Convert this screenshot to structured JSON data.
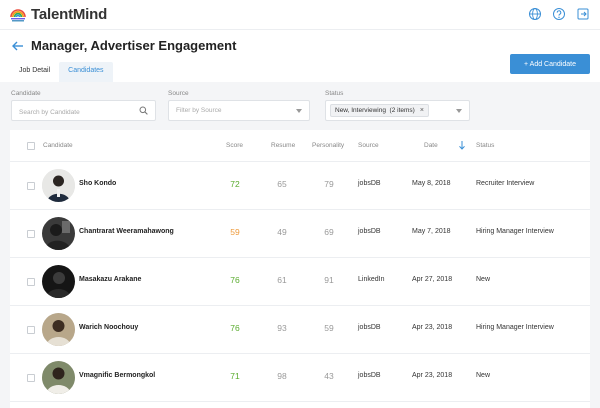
{
  "app": {
    "brand": "TalentMind"
  },
  "colors": {
    "accent": "#3a8fd6",
    "score_high": "#5aac2f",
    "score_mid": "#ee9a3a"
  },
  "header": {
    "title": "Manager, Advertiser Engagement",
    "tabs": [
      {
        "label": "Job Detail"
      },
      {
        "label": "Candidates"
      }
    ],
    "add_button": "+ Add Candidate"
  },
  "filters": {
    "candidate": {
      "label": "Candidate",
      "placeholder": "Search by Candidate"
    },
    "source": {
      "label": "Source",
      "placeholder": "Filter by Source"
    },
    "status": {
      "label": "Status",
      "chip": "New, Interviewing  (2 items)",
      "chip_close": "×"
    }
  },
  "table": {
    "headers": {
      "candidate": "Candidate",
      "score": "Score",
      "resume": "Resume",
      "personality": "Personality",
      "source": "Source",
      "date": "Date",
      "status": "Status"
    },
    "rows": [
      {
        "name": "Sho Kondo",
        "score": "72",
        "resume": "65",
        "personality": "79",
        "source": "jobsDB",
        "date": "May 8, 2018",
        "status": "Recruiter Interview"
      },
      {
        "name": "Chantrarat Weeramahawong",
        "score": "59",
        "resume": "49",
        "personality": "69",
        "source": "jobsDB",
        "date": "May 7, 2018",
        "status": "Hiring Manager Interview"
      },
      {
        "name": "Masakazu Arakane",
        "score": "76",
        "resume": "61",
        "personality": "91",
        "source": "LinkedIn",
        "date": "Apr 27, 2018",
        "status": "New"
      },
      {
        "name": "Warich Noochouy",
        "score": "76",
        "resume": "93",
        "personality": "59",
        "source": "jobsDB",
        "date": "Apr 23, 2018",
        "status": "Hiring Manager Interview"
      },
      {
        "name": "Vmagnific Bermongkol",
        "score": "71",
        "resume": "98",
        "personality": "43",
        "source": "jobsDB",
        "date": "Apr 23, 2018",
        "status": "New"
      }
    ]
  }
}
